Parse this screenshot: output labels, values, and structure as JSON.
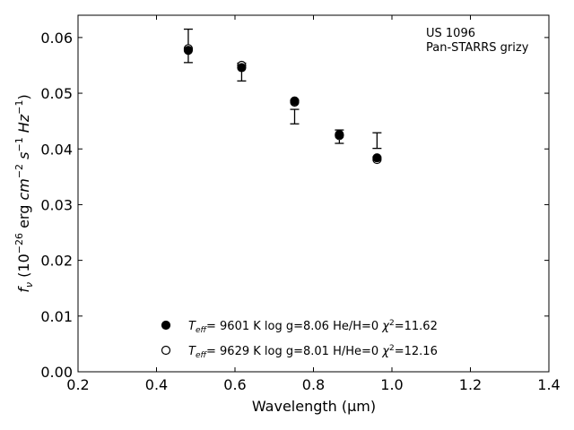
{
  "chart_data": {
    "type": "scatter",
    "object_label": "US 1096",
    "photometry_label": "Pan-STARRS grizy",
    "xlabel": "Wavelength (μm)",
    "ylabel": "f_ν (10^-26 erg cm^-2 s^-1 Hz^-1)",
    "xlim": [
      0.2,
      1.4
    ],
    "ylim": [
      0.0,
      0.064
    ],
    "xticks": [
      0.2,
      0.4,
      0.6,
      0.8,
      1.0,
      1.2,
      1.4
    ],
    "xtick_labels": [
      "0.2",
      "0.4",
      "0.6",
      "0.8",
      "1.0",
      "1.2",
      "1.4"
    ],
    "yticks": [
      0.0,
      0.01,
      0.02,
      0.03,
      0.04,
      0.05,
      0.06
    ],
    "ytick_labels": [
      "0.00",
      "0.01",
      "0.02",
      "0.03",
      "0.04",
      "0.05",
      "0.06"
    ],
    "grid": false,
    "legend_position": "bottom-center",
    "observed": [
      {
        "x": 0.481,
        "y": 0.0585,
        "err": 0.003
      },
      {
        "x": 0.617,
        "y": 0.0538,
        "err": 0.0016
      },
      {
        "x": 0.752,
        "y": 0.0458,
        "err": 0.0013
      },
      {
        "x": 0.866,
        "y": 0.0422,
        "err": 0.0012
      },
      {
        "x": 0.962,
        "y": 0.0415,
        "err": 0.0014
      }
    ],
    "series": [
      {
        "marker": "filled",
        "legend": {
          "teff": "9601 K",
          "logg": "log g=8.06",
          "comp": "He/H=0",
          "chi2": "11.62"
        },
        "x": [
          0.481,
          0.617,
          0.752,
          0.866,
          0.962
        ],
        "y": [
          0.0577,
          0.0546,
          0.0486,
          0.0426,
          0.0384
        ]
      },
      {
        "marker": "open",
        "legend": {
          "teff": "9629 K",
          "logg": "log g=8.01",
          "comp": "H/He=0",
          "chi2": "12.16"
        },
        "x": [
          0.481,
          0.617,
          0.752,
          0.866,
          0.962
        ],
        "y": [
          0.058,
          0.055,
          0.0484,
          0.0424,
          0.0381
        ]
      }
    ]
  }
}
